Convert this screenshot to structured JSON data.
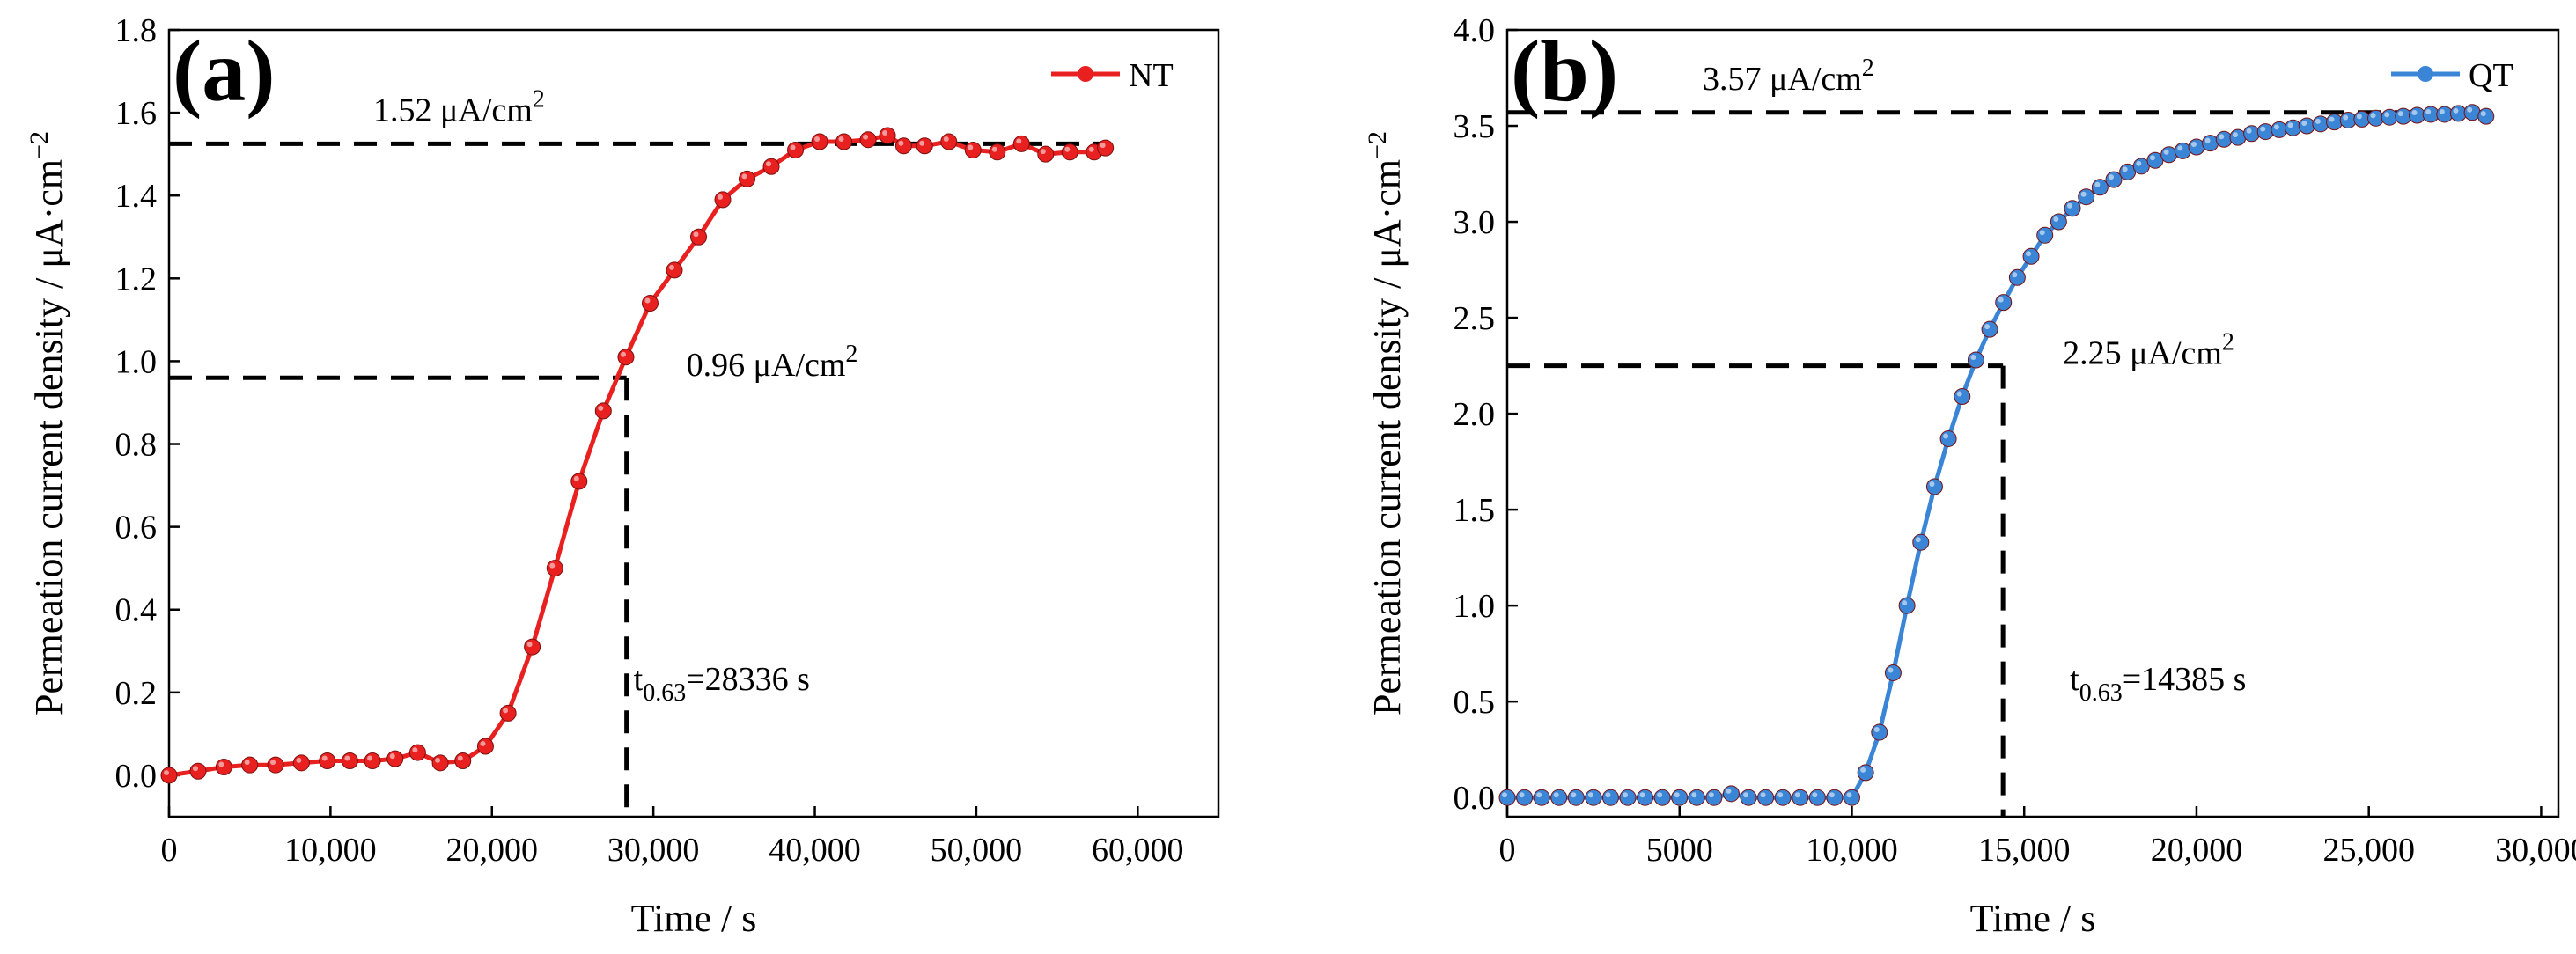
{
  "chart_data": [
    {
      "type": "line",
      "panel_label": "(a)",
      "xlabel": "Time / s",
      "ylabel": "Permeation current density / μA·cm",
      "ylabel_sup": "−2",
      "xlim": [
        0,
        65000
      ],
      "ylim": [
        -0.1,
        1.8
      ],
      "xticks": [
        0,
        10000,
        20000,
        30000,
        40000,
        50000,
        60000
      ],
      "xtick_labels": [
        "0",
        "10,000",
        "20,000",
        "30,000",
        "40,000",
        "50,000",
        "60,000"
      ],
      "yticks": [
        0.0,
        0.2,
        0.4,
        0.6,
        0.8,
        1.0,
        1.2,
        1.4,
        1.6,
        1.8
      ],
      "ytick_labels": [
        "0.0",
        "0.2",
        "0.4",
        "0.6",
        "0.8",
        "1.0",
        "1.2",
        "1.4",
        "1.6",
        "1.8"
      ],
      "color": "#e8201f",
      "series": [
        {
          "name": "NT",
          "x": [
            0,
            1800,
            3400,
            5000,
            6600,
            8200,
            9800,
            11200,
            12600,
            14000,
            15400,
            16800,
            18200,
            19600,
            21000,
            22500,
            23900,
            25400,
            26900,
            28300,
            29800,
            31300,
            32800,
            34300,
            35800,
            37300,
            38800,
            40300,
            41800,
            43300,
            44500,
            45500,
            46800,
            48300,
            49800,
            51300,
            52800,
            54300,
            55800,
            57300,
            58000
          ],
          "y": [
            0.0,
            0.01,
            0.02,
            0.025,
            0.025,
            0.03,
            0.035,
            0.035,
            0.035,
            0.04,
            0.055,
            0.03,
            0.035,
            0.07,
            0.15,
            0.31,
            0.5,
            0.71,
            0.88,
            1.01,
            1.14,
            1.22,
            1.3,
            1.39,
            1.44,
            1.47,
            1.51,
            1.53,
            1.53,
            1.535,
            1.545,
            1.52,
            1.52,
            1.53,
            1.51,
            1.505,
            1.525,
            1.5,
            1.505,
            1.505,
            1.515
          ]
        }
      ],
      "annotations": {
        "steady_value": 1.525,
        "steady_label": "1.52 μA/cm",
        "steady_sup": "2",
        "half_value": 0.96,
        "half_label": "0.96 μA/cm",
        "half_sup": "2",
        "t_value": 28336,
        "t_label_prefix": "t",
        "t_label_sub": "0.63",
        "t_label_suffix": "=28336 s"
      },
      "legend_position": "top-right"
    },
    {
      "type": "line",
      "panel_label": "(b)",
      "xlabel": "Time / s",
      "ylabel": "Permeation current density / μA·cm",
      "ylabel_sup": "−2",
      "xlim": [
        0,
        30500
      ],
      "ylim": [
        -0.1,
        4.0
      ],
      "xticks": [
        0,
        5000,
        10000,
        15000,
        20000,
        25000,
        30000
      ],
      "xtick_labels": [
        "0",
        "5000",
        "10,000",
        "15,000",
        "20,000",
        "25,000",
        "30,000"
      ],
      "yticks": [
        0.0,
        0.5,
        1.0,
        1.5,
        2.0,
        2.5,
        3.0,
        3.5,
        4.0
      ],
      "ytick_labels": [
        "0.0",
        "0.5",
        "1.0",
        "1.5",
        "2.0",
        "2.5",
        "3.0",
        "3.5",
        "4.0"
      ],
      "color": "#3a85d6",
      "series": [
        {
          "name": "QT",
          "x": [
            0,
            500,
            1000,
            1500,
            2000,
            2500,
            3000,
            3500,
            4000,
            4500,
            5000,
            5500,
            6000,
            6500,
            7000,
            7500,
            8000,
            8500,
            9000,
            9500,
            10000,
            10400,
            10800,
            11200,
            11600,
            12000,
            12400,
            12800,
            13200,
            13600,
            14000,
            14400,
            14800,
            15200,
            15600,
            16000,
            16400,
            16800,
            17200,
            17600,
            18000,
            18400,
            18800,
            19200,
            19600,
            20000,
            20400,
            20800,
            21200,
            21600,
            22000,
            22400,
            22800,
            23200,
            23600,
            24000,
            24400,
            24800,
            25200,
            25600,
            26000,
            26400,
            26800,
            27200,
            27600,
            28000,
            28400
          ],
          "y": [
            0.0,
            0.0,
            0.0,
            0.0,
            0.0,
            0.0,
            0.0,
            0.0,
            0.0,
            0.0,
            0.0,
            0.0,
            0.0,
            0.02,
            0.0,
            0.0,
            0.0,
            0.0,
            0.0,
            0.0,
            0.0,
            0.13,
            0.34,
            0.65,
            1.0,
            1.33,
            1.62,
            1.87,
            2.09,
            2.28,
            2.44,
            2.58,
            2.71,
            2.82,
            2.93,
            3.0,
            3.07,
            3.13,
            3.18,
            3.22,
            3.26,
            3.29,
            3.32,
            3.35,
            3.37,
            3.39,
            3.41,
            3.43,
            3.44,
            3.46,
            3.47,
            3.48,
            3.49,
            3.5,
            3.51,
            3.52,
            3.53,
            3.535,
            3.54,
            3.545,
            3.55,
            3.555,
            3.56,
            3.56,
            3.565,
            3.57,
            3.55
          ]
        }
      ],
      "annotations": {
        "steady_value": 3.57,
        "steady_label": "3.57 μA/cm",
        "steady_sup": "2",
        "half_value": 2.25,
        "half_label": "2.25 μA/cm",
        "half_sup": "2",
        "t_value": 14385,
        "t_label_prefix": "t",
        "t_label_sub": "0.63",
        "t_label_suffix": "=14385 s"
      },
      "legend_position": "top-right"
    }
  ]
}
